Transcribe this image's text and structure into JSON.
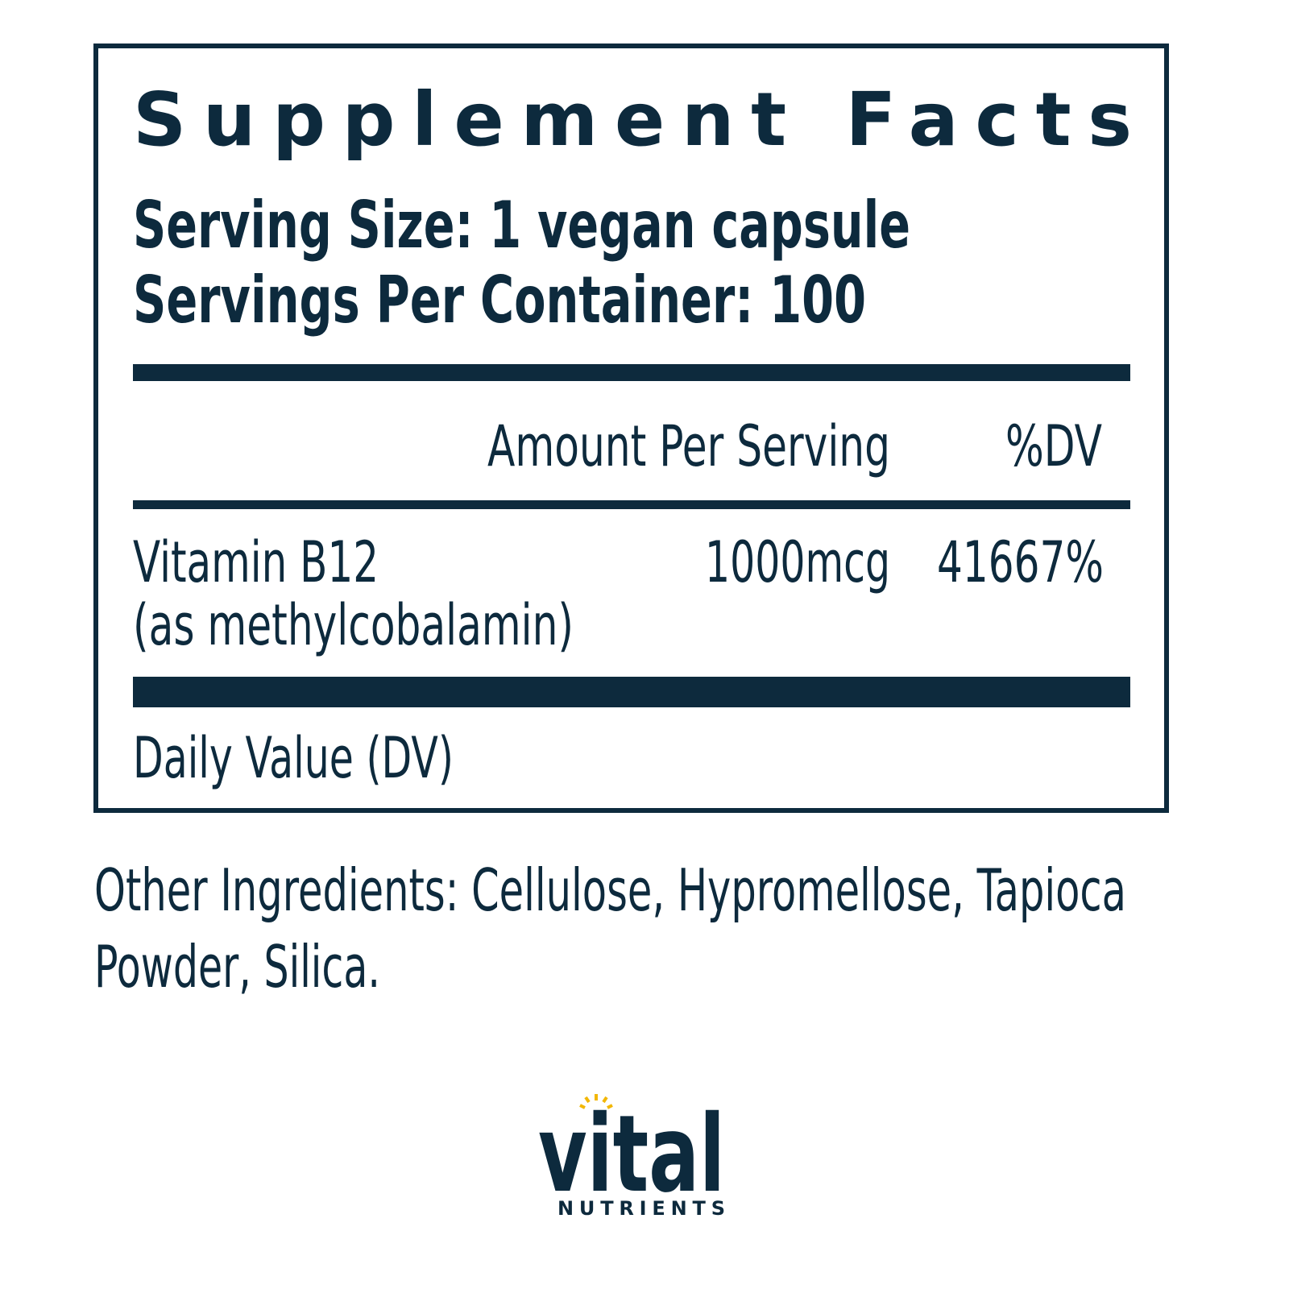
{
  "panel": {
    "title": "Supplement Facts",
    "serving_size": "Serving Size: 1 vegan capsule",
    "servings_per_container": "Servings Per Container: 100",
    "columns": {
      "amount": "Amount Per Serving",
      "dv": "%DV"
    },
    "rows": [
      {
        "name": "Vitamin B12",
        "form": "(as methylcobalamin)",
        "amount": "1000mcg",
        "dv": "41667%"
      }
    ],
    "footnote": "Daily Value (DV)"
  },
  "other_ingredients": [
    "Other Ingredients: Cellulose, Hypromellose, Tapioca",
    "Powder, Silica."
  ],
  "brand": {
    "name": "vital",
    "tagline": "NUTRIENTS"
  }
}
